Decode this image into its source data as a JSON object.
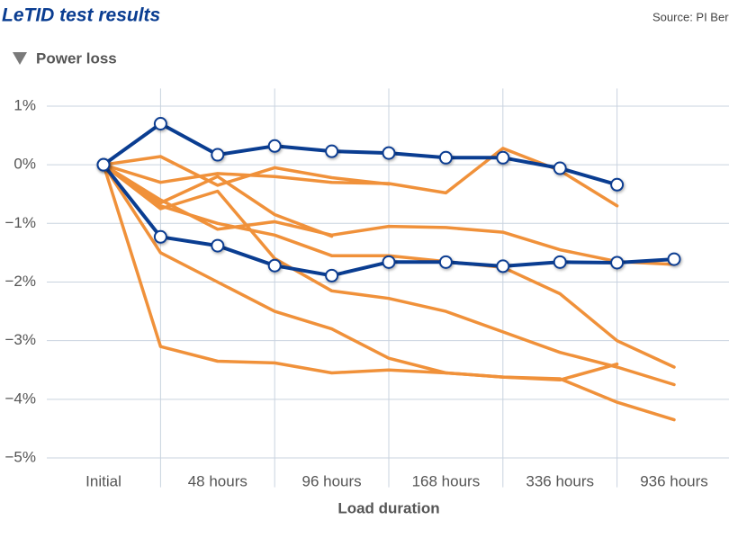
{
  "chart_data": {
    "type": "line",
    "title": "LeTID test results",
    "source": "Source: PI Berlin",
    "subtitle": "Power loss",
    "xlabel": "Load duration",
    "categories": [
      "Initial",
      null,
      "48 hours",
      null,
      "96 hours",
      null,
      "168 hours",
      null,
      "336 hours",
      null,
      "936 hours"
    ],
    "ylim": [
      -5.5,
      1.3
    ],
    "yticks": [
      {
        "value": 1,
        "label": "1%"
      },
      {
        "value": 0,
        "label": "0%"
      },
      {
        "value": -1,
        "label": "−1%"
      },
      {
        "value": -2,
        "label": "−2%"
      },
      {
        "value": -3,
        "label": "−3%"
      },
      {
        "value": -4,
        "label": "−4%"
      },
      {
        "value": -5,
        "label": "−5%"
      }
    ],
    "grid": true,
    "series": [
      {
        "color": "#f0913a",
        "markers": false,
        "values": [
          0,
          -0.3,
          -0.15,
          -0.2,
          -0.3,
          -0.32,
          -0.48,
          0.28,
          -0.1,
          -0.7,
          null
        ]
      },
      {
        "color": "#f0913a",
        "markers": false,
        "values": [
          0,
          0.14,
          -0.35,
          -0.05,
          -0.22,
          -0.33,
          null,
          null,
          null,
          null,
          null
        ]
      },
      {
        "color": "#f0913a",
        "markers": false,
        "values": [
          0,
          -0.6,
          -1.1,
          -0.97,
          -1.2,
          -1.05,
          -1.07,
          -1.15,
          -1.45,
          -1.65,
          -1.7
        ]
      },
      {
        "color": "#f0913a",
        "markers": false,
        "values": [
          0,
          -0.7,
          -1.0,
          -1.2,
          -1.55,
          -1.55,
          -1.65,
          -1.75,
          -2.2,
          -3.0,
          -3.45
        ]
      },
      {
        "color": "#f0913a",
        "markers": false,
        "values": [
          0,
          -0.75,
          -0.45,
          -1.6,
          -2.15,
          -2.28,
          -2.5,
          -2.85,
          -3.2,
          -3.45,
          -3.75
        ]
      },
      {
        "color": "#f0913a",
        "markers": false,
        "values": [
          0,
          -1.5,
          -2.0,
          -2.5,
          -2.8,
          -3.3,
          -3.55,
          -3.62,
          -3.65,
          -4.05,
          -4.35
        ]
      },
      {
        "color": "#f0913a",
        "markers": false,
        "values": [
          0,
          -3.1,
          -3.35,
          -3.38,
          -3.55,
          -3.5,
          -3.55,
          -3.62,
          -3.67,
          -3.4,
          null
        ]
      },
      {
        "color": "#f0913a",
        "markers": false,
        "values": [
          0,
          -0.65,
          -0.2,
          -0.85,
          -1.22,
          null,
          null,
          null,
          null,
          null,
          null
        ]
      },
      {
        "color": "#0a3d91",
        "markers": true,
        "values": [
          0,
          0.7,
          0.17,
          0.32,
          0.23,
          0.2,
          0.12,
          0.12,
          -0.06,
          -0.34,
          null
        ]
      },
      {
        "color": "#0a3d91",
        "markers": true,
        "values": [
          0,
          -1.23,
          -1.38,
          -1.72,
          -1.89,
          -1.66,
          -1.66,
          -1.73,
          -1.66,
          -1.67,
          -1.61
        ]
      }
    ]
  }
}
